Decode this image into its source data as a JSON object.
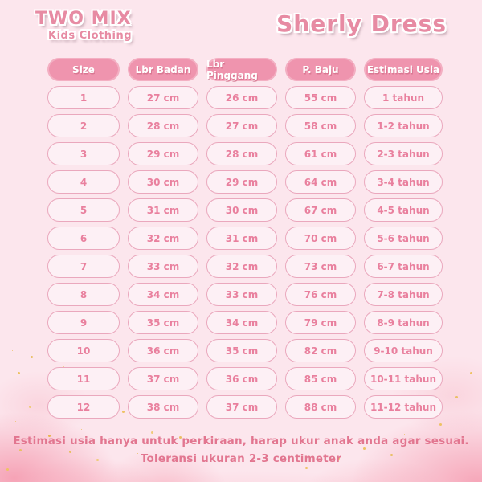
{
  "brand": {
    "name": "TWO MIX",
    "tagline": "Kids Clothing"
  },
  "page_title": "Sherly Dress",
  "table": {
    "headers": [
      "Size",
      "Lbr Badan",
      "Lbr Pinggang",
      "P. Baju",
      "Estimasi Usia"
    ],
    "rows": [
      [
        "1",
        "27 cm",
        "26 cm",
        "55 cm",
        "1 tahun"
      ],
      [
        "2",
        "28 cm",
        "27 cm",
        "58 cm",
        "1-2 tahun"
      ],
      [
        "3",
        "29 cm",
        "28 cm",
        "61 cm",
        "2-3 tahun"
      ],
      [
        "4",
        "30 cm",
        "29 cm",
        "64 cm",
        "3-4 tahun"
      ],
      [
        "5",
        "31 cm",
        "30 cm",
        "67 cm",
        "4-5 tahun"
      ],
      [
        "6",
        "32 cm",
        "31 cm",
        "70 cm",
        "5-6 tahun"
      ],
      [
        "7",
        "33 cm",
        "32 cm",
        "73 cm",
        "6-7 tahun"
      ],
      [
        "8",
        "34 cm",
        "33 cm",
        "76 cm",
        "7-8 tahun"
      ],
      [
        "9",
        "35 cm",
        "34 cm",
        "79 cm",
        "8-9 tahun"
      ],
      [
        "10",
        "36 cm",
        "35 cm",
        "82 cm",
        "9-10 tahun"
      ],
      [
        "11",
        "37 cm",
        "36 cm",
        "85 cm",
        "10-11 tahun"
      ],
      [
        "12",
        "38 cm",
        "37 cm",
        "88 cm",
        "11-12 tahun"
      ]
    ]
  },
  "chart_data": {
    "type": "table",
    "title": "Sherly Dress",
    "columns": [
      "Size",
      "Lbr Badan",
      "Lbr Pinggang",
      "P. Baju",
      "Estimasi Usia"
    ],
    "rows": [
      [
        "1",
        "27 cm",
        "26 cm",
        "55 cm",
        "1 tahun"
      ],
      [
        "2",
        "28 cm",
        "27 cm",
        "58 cm",
        "1-2 tahun"
      ],
      [
        "3",
        "29 cm",
        "28 cm",
        "61 cm",
        "2-3 tahun"
      ],
      [
        "4",
        "30 cm",
        "29 cm",
        "64 cm",
        "3-4 tahun"
      ],
      [
        "5",
        "31 cm",
        "30 cm",
        "67 cm",
        "4-5 tahun"
      ],
      [
        "6",
        "32 cm",
        "31 cm",
        "70 cm",
        "5-6 tahun"
      ],
      [
        "7",
        "33 cm",
        "32 cm",
        "73 cm",
        "6-7 tahun"
      ],
      [
        "8",
        "34 cm",
        "33 cm",
        "76 cm",
        "7-8 tahun"
      ],
      [
        "9",
        "35 cm",
        "34 cm",
        "79 cm",
        "8-9 tahun"
      ],
      [
        "10",
        "36 cm",
        "35 cm",
        "82 cm",
        "9-10 tahun"
      ],
      [
        "11",
        "37 cm",
        "36 cm",
        "85 cm",
        "10-11 tahun"
      ],
      [
        "12",
        "38 cm",
        "37 cm",
        "88 cm",
        "11-12 tahun"
      ]
    ]
  },
  "footer": {
    "line1": "Estimasi usia hanya untuk perkiraan, harap ukur anak anda agar sesuai.",
    "line2": "Toleransi ukuran 2-3 centimeter"
  },
  "colors": {
    "background": "#fce6ed",
    "header_pill": "#ef94ae",
    "header_text": "#ffffff",
    "cell_border": "#eaa8bd",
    "cell_background": "#fdf0f5",
    "cell_text": "#e9809e",
    "accent_text": "#e27690",
    "gold_speckle": "#eec263",
    "brand_pink": "#e78ba3"
  }
}
